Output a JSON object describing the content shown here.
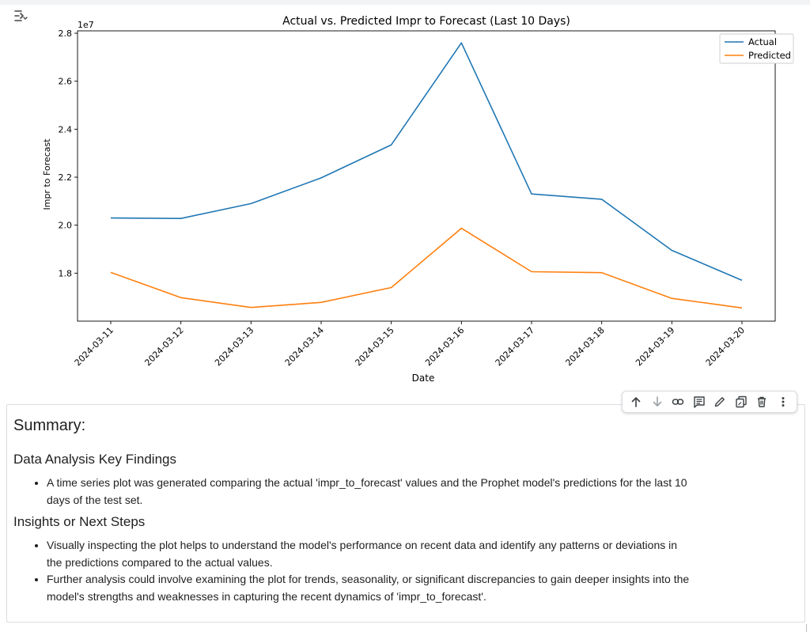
{
  "output_toggle": {
    "icon": "output-toggle-icon"
  },
  "chart_data": {
    "type": "line",
    "title": "Actual vs. Predicted Impr to Forecast (Last 10 Days)",
    "xlabel": "Date",
    "ylabel": "Impr to Forecast",
    "y_multiplier_label": "1e7",
    "x": [
      "2024-03-11",
      "2024-03-12",
      "2024-03-13",
      "2024-03-14",
      "2024-03-15",
      "2024-03-16",
      "2024-03-17",
      "2024-03-18",
      "2024-03-19",
      "2024-03-20"
    ],
    "y_ticks": [
      1.8,
      2.0,
      2.2,
      2.4,
      2.6,
      2.8
    ],
    "y_tick_labels": [
      "1.8",
      "2.0",
      "2.2",
      "2.4",
      "2.6",
      "2.8"
    ],
    "ylim": [
      1.6,
      2.81
    ],
    "series": [
      {
        "name": "Actual",
        "color": "#1f77b4",
        "values": [
          2.03,
          2.028,
          2.09,
          2.197,
          2.335,
          2.76,
          2.13,
          2.108,
          1.895,
          1.77
        ]
      },
      {
        "name": "Predicted",
        "color": "#ff7f0e",
        "values": [
          1.803,
          1.698,
          1.657,
          1.678,
          1.74,
          1.987,
          1.806,
          1.802,
          1.695,
          1.655
        ]
      }
    ],
    "legend_position": "top-right",
    "grid": false
  },
  "toolbar": {
    "buttons": [
      {
        "name": "move-up-button",
        "icon": "arrow-up-icon"
      },
      {
        "name": "move-down-button",
        "icon": "arrow-down-icon"
      },
      {
        "name": "copy-link-button",
        "icon": "link-icon"
      },
      {
        "name": "add-comment-button",
        "icon": "comment-icon"
      },
      {
        "name": "edit-button",
        "icon": "pencil-icon"
      },
      {
        "name": "mirror-cell-button",
        "icon": "mirror-icon"
      },
      {
        "name": "delete-button",
        "icon": "trash-icon"
      },
      {
        "name": "more-options-button",
        "icon": "more-vert-icon"
      }
    ]
  },
  "summary": {
    "title": "Summary:",
    "findings_heading": "Data Analysis Key Findings",
    "findings": [
      "A time series plot was generated comparing the actual 'impr_to_forecast' values and the Prophet model's predictions for the last 10 days of the test set."
    ],
    "insights_heading": "Insights or Next Steps",
    "insights": [
      "Visually inspecting the plot helps to understand the model's performance on recent data and identify any patterns or deviations in the predictions compared to the actual values.",
      "Further analysis could involve examining the plot for trends, seasonality, or significant discrepancies to gain deeper insights into the model's strengths and weaknesses in capturing the recent dynamics of 'impr_to_forecast'."
    ]
  }
}
